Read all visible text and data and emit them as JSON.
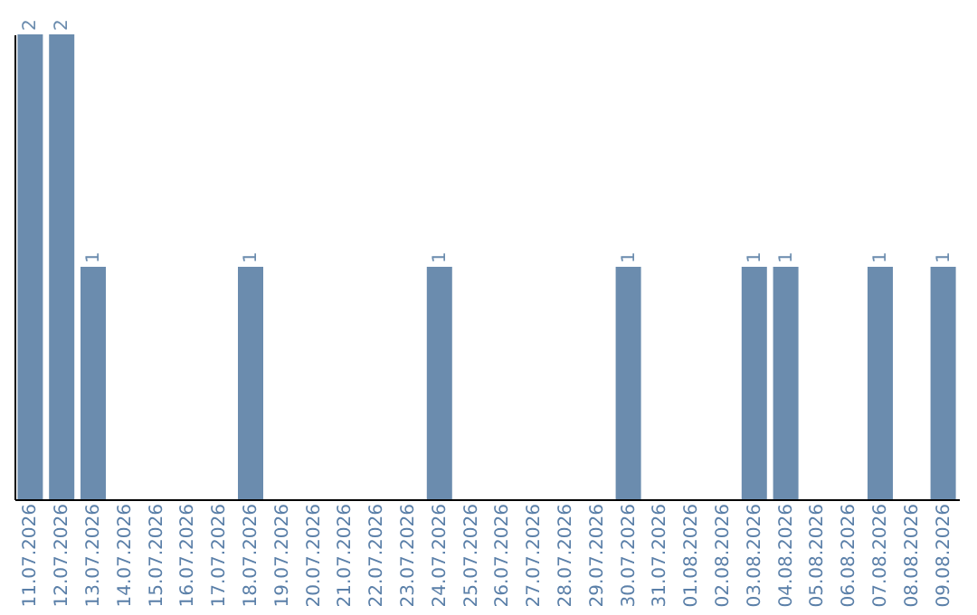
{
  "chart_data": {
    "type": "bar",
    "categories": [
      "11.07.2026",
      "12.07.2026",
      "13.07.2026",
      "14.07.2026",
      "15.07.2026",
      "16.07.2026",
      "17.07.2026",
      "18.07.2026",
      "19.07.2026",
      "20.07.2026",
      "21.07.2026",
      "22.07.2026",
      "23.07.2026",
      "24.07.2026",
      "25.07.2026",
      "26.07.2026",
      "27.07.2026",
      "28.07.2026",
      "29.07.2026",
      "30.07.2026",
      "31.07.2026",
      "01.08.2026",
      "02.08.2026",
      "03.08.2026",
      "04.08.2026",
      "05.08.2026",
      "06.08.2026",
      "07.08.2026",
      "08.08.2026",
      "09.08.2026"
    ],
    "values": [
      2,
      2,
      1,
      0,
      0,
      0,
      0,
      1,
      0,
      0,
      0,
      0,
      0,
      1,
      0,
      0,
      0,
      0,
      0,
      1,
      0,
      0,
      0,
      1,
      1,
      0,
      0,
      1,
      0,
      1
    ],
    "value_labels": [
      "2",
      "2",
      "1",
      null,
      null,
      null,
      null,
      "1",
      null,
      null,
      null,
      null,
      null,
      "1",
      null,
      null,
      null,
      null,
      null,
      "1",
      null,
      null,
      null,
      "1",
      "1",
      null,
      null,
      "1",
      null,
      "1"
    ],
    "color": "#6b8cae",
    "ylim": [
      0,
      2
    ],
    "tick_labels": "x",
    "grid": false
  }
}
